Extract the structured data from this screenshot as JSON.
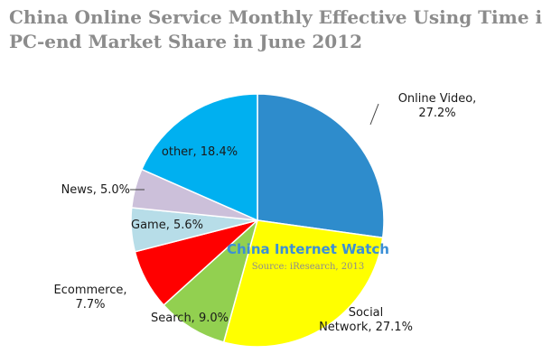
{
  "chart_data": {
    "type": "pie",
    "title_lines": [
      "China Online Service Monthly Effective Using Time in",
      "PC-end Market Share in June 2012"
    ],
    "slices": [
      {
        "label_lines": [
          "Online Video,",
          "27.2%"
        ],
        "value": 27.2,
        "color": "#2e8ccc"
      },
      {
        "label_lines": [
          "Social",
          "Network, 27.1%"
        ],
        "value": 27.1,
        "color": "#ffff00"
      },
      {
        "label_lines": [
          "Search, 9.0%"
        ],
        "value": 9.0,
        "color": "#92d050"
      },
      {
        "label_lines": [
          "Ecommerce,",
          "7.7%"
        ],
        "value": 7.7,
        "color": "#ff0000"
      },
      {
        "label_lines": [
          "Game, 5.6%"
        ],
        "value": 5.6,
        "color": "#b7dde8"
      },
      {
        "label_lines": [
          "News, 5.0%"
        ],
        "value": 5.0,
        "color": "#ccc0da"
      },
      {
        "label_lines": [
          "other, 18.4%"
        ],
        "value": 18.4,
        "color": "#00b0f0"
      }
    ],
    "start_angle": "12 o'clock",
    "direction": "clockwise",
    "legend": "none"
  },
  "watermark": {
    "title": "China Internet Watch",
    "source": "Source: iResearch, 2013"
  }
}
